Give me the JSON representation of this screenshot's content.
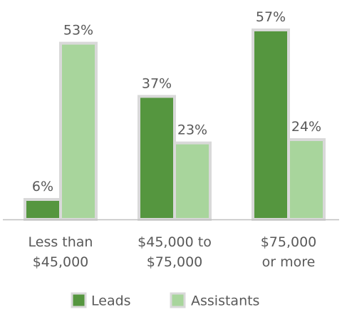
{
  "chart_data": {
    "type": "bar",
    "categories": [
      [
        "Less than",
        "$45,000"
      ],
      [
        "$45,000 to",
        "$75,000"
      ],
      [
        "$75,000",
        "or more"
      ]
    ],
    "series": [
      {
        "name": "Leads",
        "values": [
          6,
          37,
          57
        ],
        "labels": [
          "6%",
          "37%",
          "57%"
        ],
        "color": "#55963f"
      },
      {
        "name": "Assistants",
        "values": [
          53,
          23,
          24
        ],
        "labels": [
          "53%",
          "23%",
          "24%"
        ],
        "color": "#a8d59c"
      }
    ],
    "ylim": [
      0,
      60
    ],
    "grid": false,
    "legend_position": "bottom",
    "outline_color": "#d9d9d9",
    "axis_color": "#bfbfbf"
  }
}
